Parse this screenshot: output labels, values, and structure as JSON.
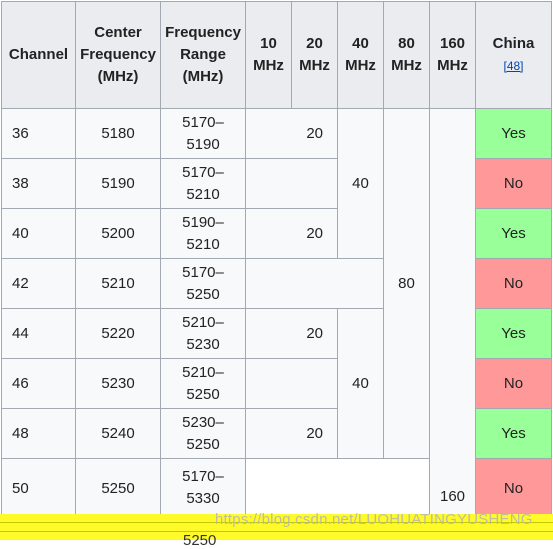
{
  "headers": {
    "channel": "Channel",
    "center_line1": "Center",
    "center_line2": "Frequency",
    "center_line3": "(MHz)",
    "range_line1": "Frequency",
    "range_line2": "Range",
    "range_line3": "(MHz)",
    "w10_line1": "10",
    "w10_line2": "MHz",
    "w20_line1": "20",
    "w20_line2": "MHz",
    "w40_line1": "40",
    "w40_line2": "MHz",
    "w80_line1": "80",
    "w80_line2": "MHz",
    "w160_line1": "160",
    "w160_line2": "MHz",
    "china": "China",
    "china_ref": "[48]"
  },
  "rows": [
    {
      "channel": "36",
      "center": "5180",
      "range_top": "5170–",
      "range_bottom": "5190",
      "w20": "20",
      "china": "Yes"
    },
    {
      "channel": "38",
      "center": "5190",
      "range_top": "5170–",
      "range_bottom": "5210",
      "china": "No"
    },
    {
      "channel": "40",
      "center": "5200",
      "range_top": "5190–",
      "range_bottom": "5210",
      "w20": "20",
      "china": "Yes"
    },
    {
      "channel": "42",
      "center": "5210",
      "range_top": "5170–",
      "range_bottom": "5250",
      "china": "No"
    },
    {
      "channel": "44",
      "center": "5220",
      "range_top": "5210–",
      "range_bottom": "5230",
      "w20": "20",
      "china": "Yes"
    },
    {
      "channel": "46",
      "center": "5230",
      "range_top": "5210–",
      "range_bottom": "5250",
      "china": "No"
    },
    {
      "channel": "48",
      "center": "5240",
      "range_top": "5230–",
      "range_bottom": "5250",
      "w20": "20",
      "china": "Yes"
    },
    {
      "channel": "50",
      "center": "5250",
      "range_top": "5170–",
      "range_bottom": "5330",
      "china": "No"
    }
  ],
  "spans": {
    "w40_first": "40",
    "w40_second": "40",
    "w80": "80",
    "w160": "160"
  },
  "partial_row_text": "5250",
  "watermark": "https://blog.csdn.net/LUOHUATINGYUSHENG",
  "colors": {
    "yes": "#99ff99",
    "no": "#ff9999",
    "header_bg": "#eaecf0",
    "highlight": "#fffb2a"
  }
}
